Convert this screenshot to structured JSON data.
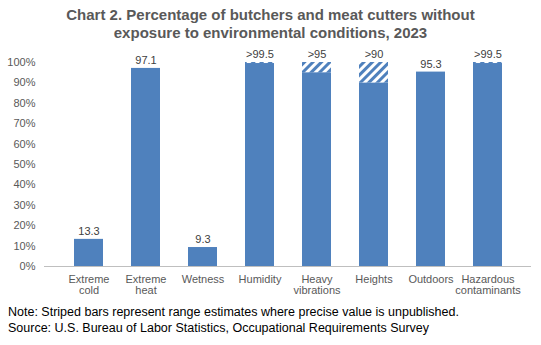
{
  "chart_data": {
    "type": "bar",
    "title": "Chart 2. Percentage of butchers and meat cutters without exposure to environmental conditions, 2023",
    "categories": [
      "Extreme cold",
      "Extreme heat",
      "Wetness",
      "Humidity",
      "Heavy vibrations",
      "Heights",
      "Outdoors",
      "Hazardous contaminants"
    ],
    "values": [
      13.3,
      97.1,
      9.3,
      99.5,
      95,
      90,
      95.3,
      99.5
    ],
    "value_labels": [
      "13.3",
      "97.1",
      "9.3",
      ">99.5",
      ">95",
      ">90",
      "95.3",
      ">99.5"
    ],
    "range_upper": [
      null,
      null,
      null,
      100,
      100,
      100,
      null,
      100
    ],
    "color": "#4f81bd",
    "ylim": [
      0,
      100
    ],
    "yticks": [
      {
        "value": 0,
        "label": "0%"
      },
      {
        "value": 10,
        "label": "10%"
      },
      {
        "value": 20,
        "label": "20%"
      },
      {
        "value": 30,
        "label": "30%"
      },
      {
        "value": 40,
        "label": "40%"
      },
      {
        "value": 50,
        "label": "50%"
      },
      {
        "value": 60,
        "label": "60%"
      },
      {
        "value": 70,
        "label": "70%"
      },
      {
        "value": 80,
        "label": "80%"
      },
      {
        "value": 90,
        "label": "90%"
      },
      {
        "value": 100,
        "label": "100%"
      }
    ],
    "grid": false,
    "data_labels": true,
    "note": "Note: Striped bars represent range estimates where precise value is unpublished.",
    "source": "Source: U.S. Bureau of Labor Statistics, Occupational Requirements Survey"
  }
}
